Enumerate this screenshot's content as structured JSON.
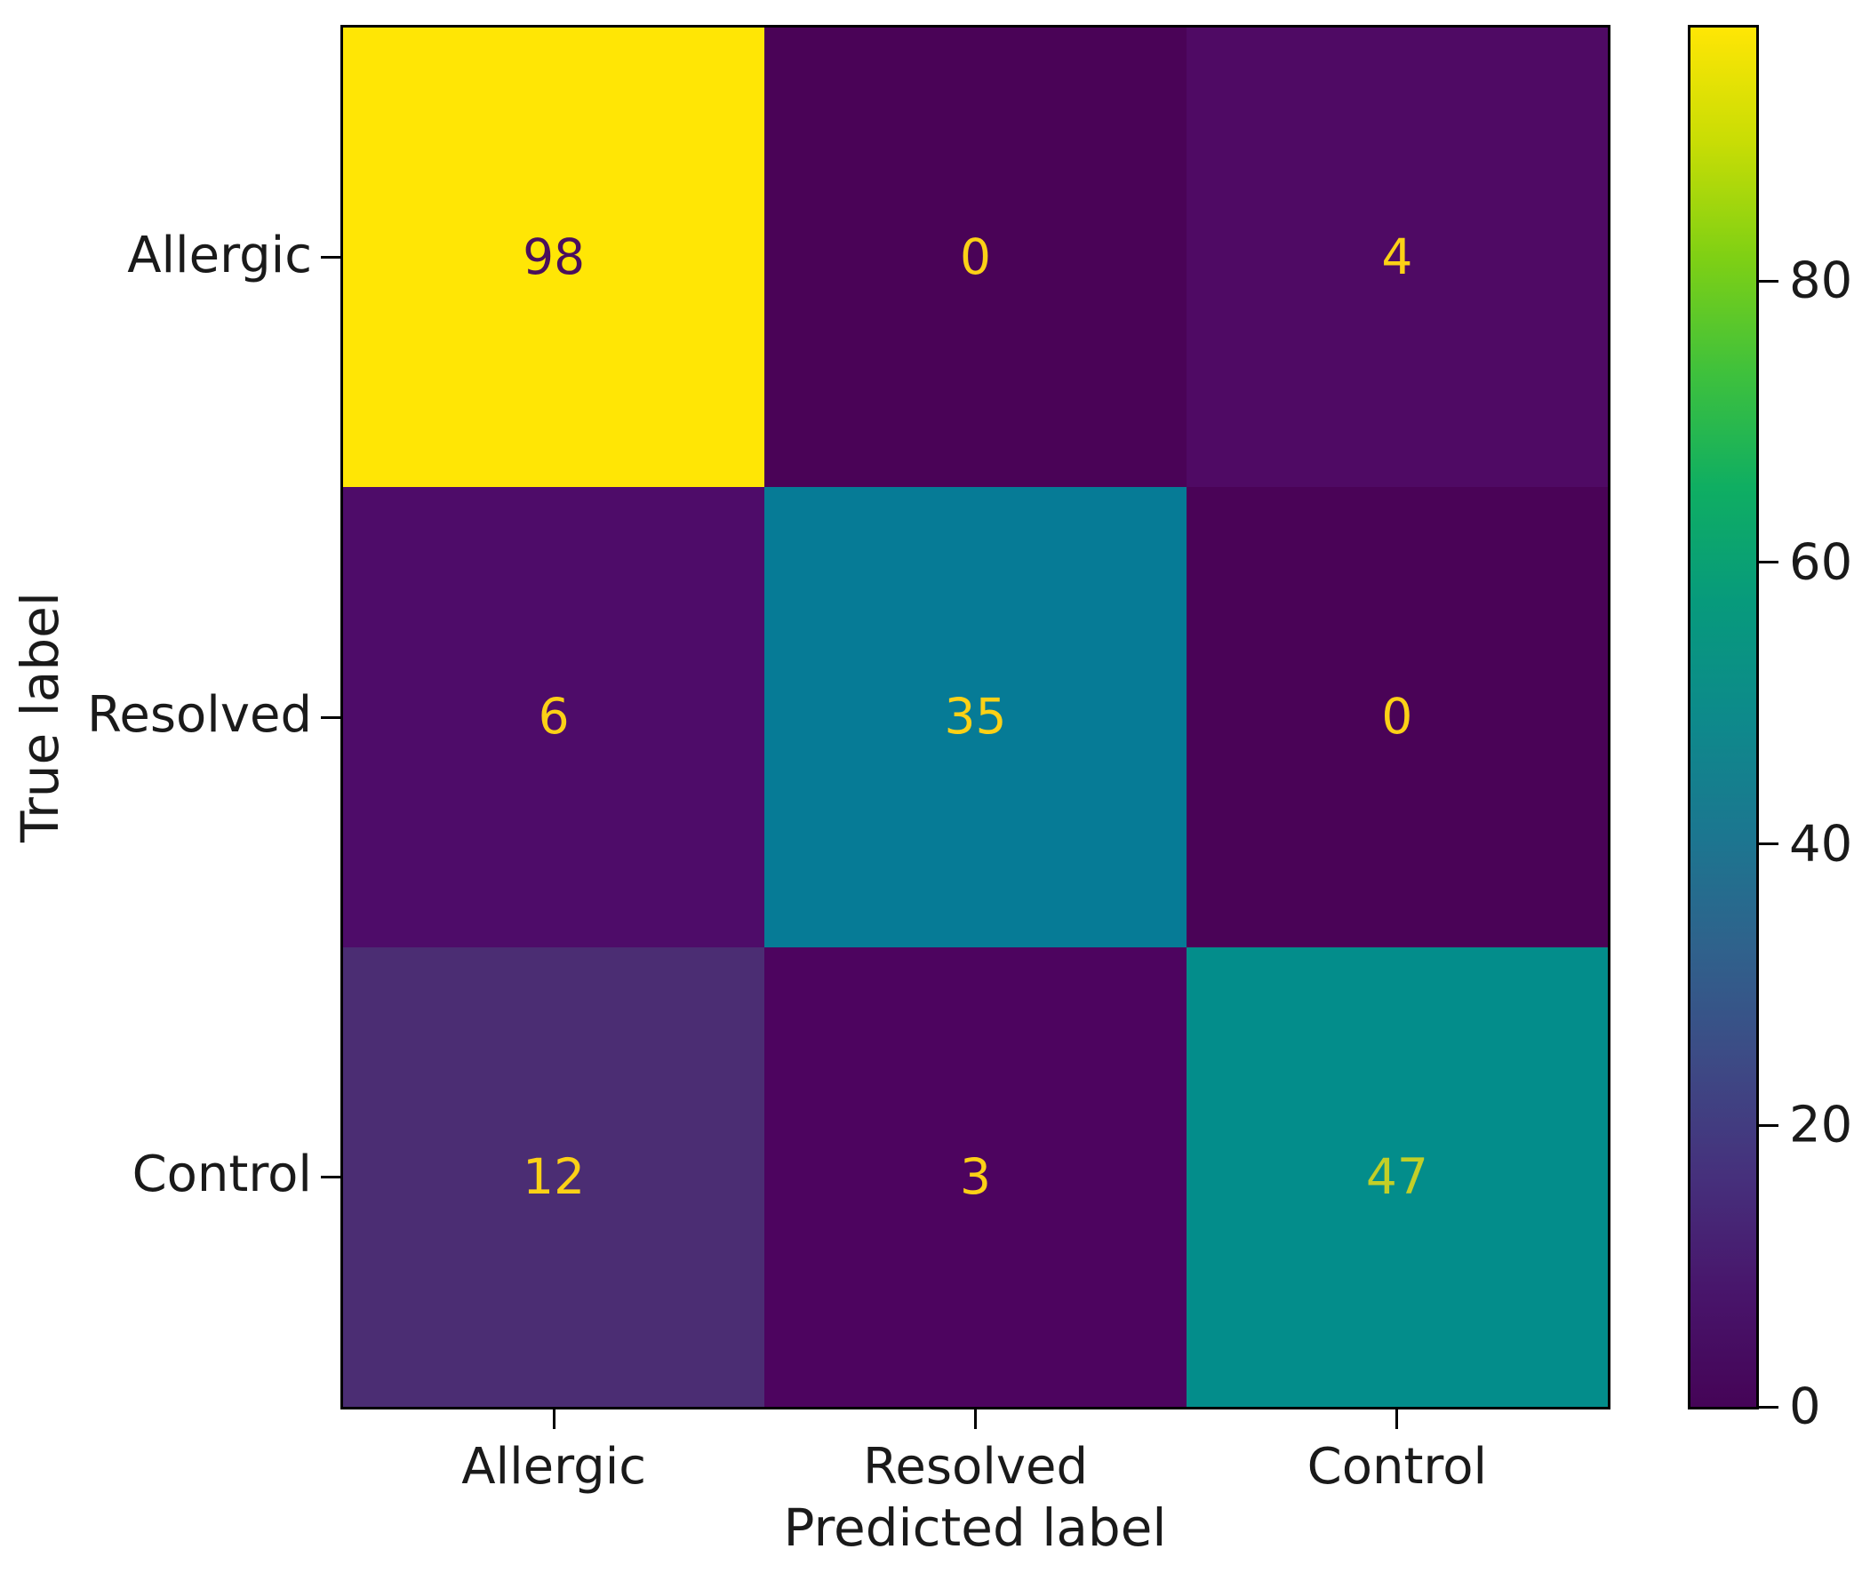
{
  "figure": {
    "background": "#ffffff"
  },
  "chart_data": {
    "type": "heatmap",
    "title": "",
    "xlabel": "Predicted label",
    "ylabel": "True label",
    "x_categories": [
      "Allergic",
      "Resolved",
      "Control"
    ],
    "y_categories": [
      "Allergic",
      "Resolved",
      "Control"
    ],
    "matrix": [
      [
        98,
        0,
        4
      ],
      [
        6,
        35,
        0
      ],
      [
        12,
        3,
        47
      ]
    ],
    "vmin": 0,
    "vmax": 98,
    "colormap": "viridis",
    "grid": false,
    "legend_position": "none",
    "colorbar": {
      "position": "right",
      "ticks": [
        0,
        20,
        40,
        60,
        80
      ]
    },
    "cell_colors": [
      [
        "#ffe605",
        "#4a0357",
        "#4f0a64"
      ],
      [
        "#4e0c69",
        "#067b96",
        "#4a0357"
      ],
      [
        "#4b2d73",
        "#4d045f",
        "#038d8b"
      ]
    ],
    "cell_text_colors": [
      [
        "#4a0f5c",
        "#fcd116",
        "#fcd116"
      ],
      [
        "#fcd116",
        "#fcd116",
        "#fcd116"
      ],
      [
        "#fcd116",
        "#fcd116",
        "#c3cf27"
      ]
    ],
    "colorbar_gradient_bottom_to_top": [
      "#450457",
      "#48156b",
      "#46307c",
      "#3d4a85",
      "#2f628c",
      "#1b7790",
      "#0d8a8b",
      "#079a7c",
      "#0fae62",
      "#3fc13c",
      "#7fd014",
      "#c8dd05",
      "#ffe605"
    ],
    "axis_color": "#000000"
  }
}
